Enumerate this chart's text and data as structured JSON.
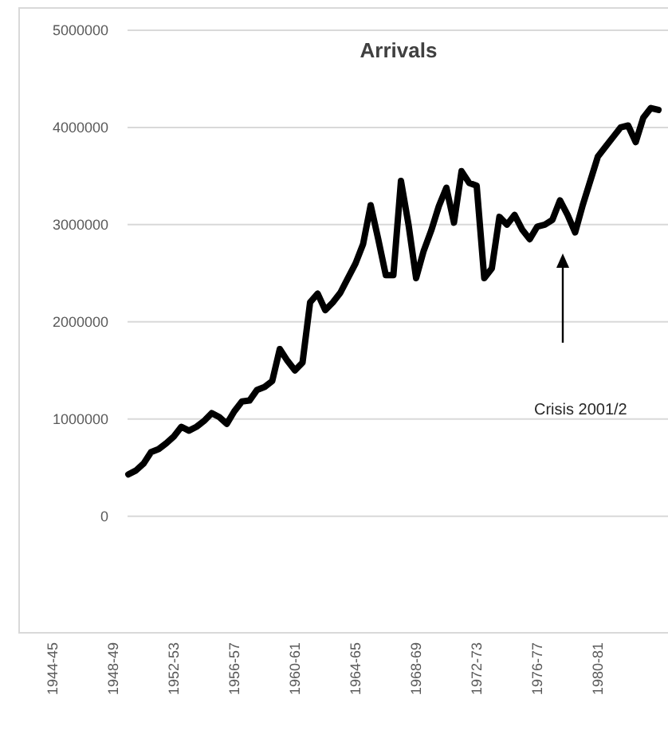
{
  "chart_data": {
    "type": "line",
    "title": "Arrivals",
    "categories": [
      "1944-45",
      null,
      null,
      null,
      null,
      null,
      null,
      null,
      "1948-49",
      null,
      null,
      null,
      null,
      null,
      null,
      null,
      "1952-53",
      null,
      null,
      null,
      null,
      null,
      null,
      null,
      "1956-57",
      null,
      null,
      null,
      null,
      null,
      null,
      null,
      "1960-61",
      null,
      null,
      null,
      null,
      null,
      null,
      null,
      "1964-65",
      null,
      null,
      null,
      null,
      null,
      null,
      null,
      "1968-69",
      null,
      null,
      null,
      null,
      null,
      null,
      null,
      "1972-73",
      null,
      null,
      null,
      null,
      null,
      null,
      null,
      "1976-77",
      null,
      null,
      null,
      null,
      null,
      null,
      null,
      "1980-81",
      null,
      null,
      null,
      null,
      null,
      null,
      null,
      null
    ],
    "series": [
      {
        "color": "#000000",
        "values": [
          null,
          null,
          null,
          null,
          null,
          null,
          null,
          null,
          null,
          null,
          430000,
          470000,
          540000,
          660000,
          690000,
          750000,
          820000,
          920000,
          880000,
          920000,
          980000,
          1060000,
          1020000,
          950000,
          1080000,
          1180000,
          1190000,
          1300000,
          1330000,
          1390000,
          1720000,
          1600000,
          1500000,
          1580000,
          2200000,
          2290000,
          2120000,
          2200000,
          2300000,
          2450000,
          2600000,
          2800000,
          3200000,
          2850000,
          2480000,
          2480000,
          3450000,
          3000000,
          2450000,
          2730000,
          2940000,
          3190000,
          3380000,
          3020000,
          3550000,
          3430000,
          3400000,
          2450000,
          2550000,
          3080000,
          3000000,
          3100000,
          2950000,
          2850000,
          2980000,
          3000000,
          3050000,
          3250000,
          3100000,
          2920000,
          3200000,
          3450000,
          3700000,
          3800000,
          3900000,
          4000000,
          4020000,
          3850000,
          4100000,
          4200000,
          4180000
        ]
      }
    ],
    "ylim": [
      -1200000,
      5000000
    ],
    "yticks": [
      0,
      1000000,
      2000000,
      3000000,
      4000000,
      5000000
    ],
    "grid": true,
    "line_style": "solid",
    "marker": "none",
    "annotations": [
      "Crisis 2001/2"
    ]
  }
}
